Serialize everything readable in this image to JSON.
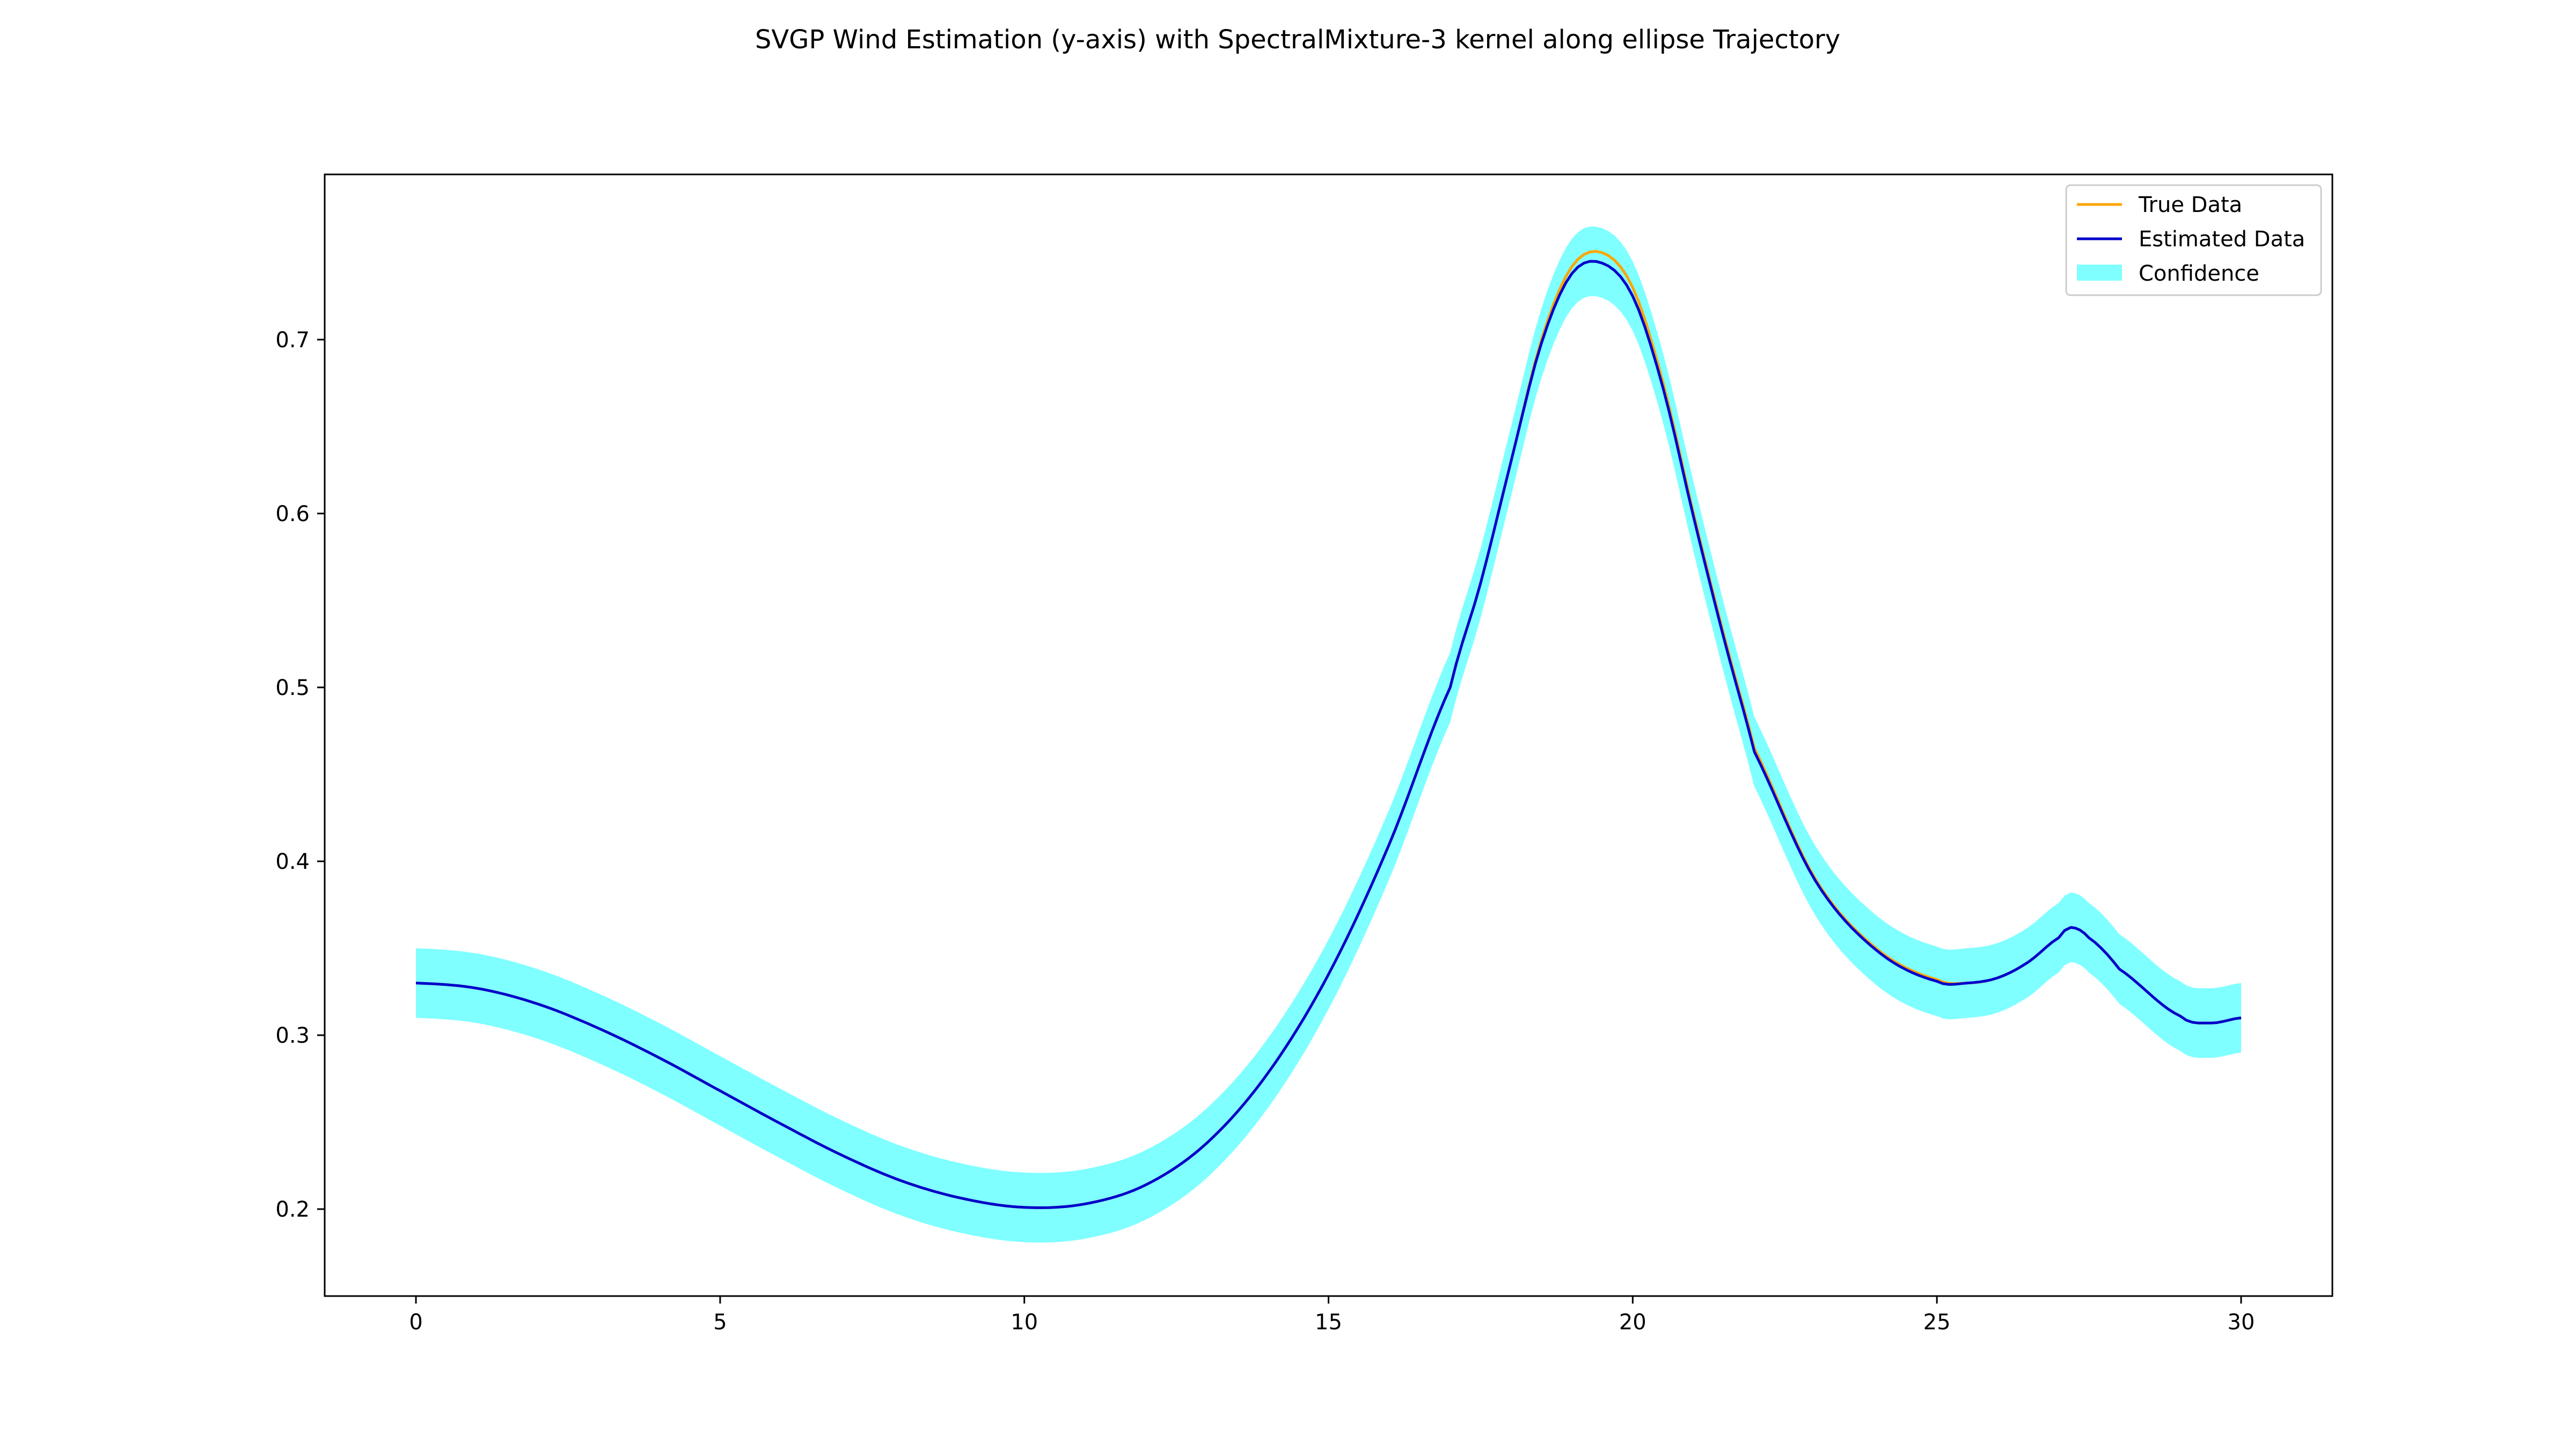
{
  "chart_data": {
    "type": "line",
    "title": "SVGP Wind Estimation (y-axis) with SpectralMixture-3 kernel along ellipse Trajectory",
    "xlabel": "",
    "ylabel": "",
    "xlim": [
      -1.5,
      31.5
    ],
    "ylim": [
      0.15,
      0.795
    ],
    "xticks": [
      0,
      5,
      10,
      15,
      20,
      25,
      30
    ],
    "yticks": [
      0.2,
      0.3,
      0.4,
      0.5,
      0.6,
      0.7
    ],
    "grid": false,
    "legend_position": "top-right",
    "x": [
      0,
      1,
      2,
      3,
      4,
      5,
      6,
      7,
      8,
      9,
      10,
      11,
      12,
      13,
      14,
      15,
      16,
      17,
      17.5,
      18,
      18.5,
      19,
      19.5,
      20,
      20.5,
      21,
      21.5,
      22,
      23,
      24,
      25,
      25.5,
      26,
      26.5,
      27,
      27.2,
      27.5,
      28,
      29,
      29.5,
      30
    ],
    "series": [
      {
        "name": "True Data",
        "color": "#ffa500",
        "values": [
          0.33,
          0.327,
          0.318,
          0.304,
          0.287,
          0.268,
          0.249,
          0.231,
          0.216,
          0.206,
          0.201,
          0.203,
          0.214,
          0.238,
          0.278,
          0.335,
          0.41,
          0.5,
          0.56,
          0.63,
          0.7,
          0.742,
          0.75,
          0.73,
          0.675,
          0.6,
          0.53,
          0.465,
          0.39,
          0.35,
          0.332,
          0.33,
          0.333,
          0.342,
          0.356,
          0.362,
          0.356,
          0.338,
          0.311,
          0.307,
          0.31
        ]
      },
      {
        "name": "Estimated Data",
        "color": "#0000cc",
        "values": [
          0.33,
          0.327,
          0.318,
          0.304,
          0.287,
          0.268,
          0.249,
          0.231,
          0.216,
          0.206,
          0.201,
          0.203,
          0.214,
          0.238,
          0.278,
          0.335,
          0.41,
          0.5,
          0.56,
          0.63,
          0.698,
          0.738,
          0.744,
          0.725,
          0.672,
          0.598,
          0.528,
          0.463,
          0.389,
          0.349,
          0.331,
          0.33,
          0.333,
          0.342,
          0.356,
          0.362,
          0.356,
          0.338,
          0.311,
          0.307,
          0.31
        ]
      }
    ],
    "confidence": {
      "name": "Confidence",
      "color": "#00ffff",
      "opacity": 0.5,
      "half_width": 0.02
    }
  }
}
